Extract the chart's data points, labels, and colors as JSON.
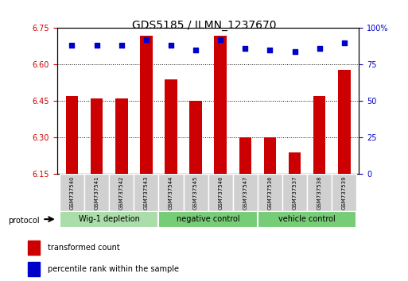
{
  "title": "GDS5185 / ILMN_1237670",
  "samples": [
    "GSM737540",
    "GSM737541",
    "GSM737542",
    "GSM737543",
    "GSM737544",
    "GSM737545",
    "GSM737546",
    "GSM737547",
    "GSM737536",
    "GSM737537",
    "GSM737538",
    "GSM737539"
  ],
  "bar_values": [
    6.47,
    6.46,
    6.46,
    6.72,
    6.54,
    6.45,
    6.72,
    6.3,
    6.3,
    6.24,
    6.47,
    6.58
  ],
  "dot_values": [
    88,
    88,
    88,
    92,
    88,
    85,
    92,
    86,
    85,
    84,
    86,
    90
  ],
  "ylim_left": [
    6.15,
    6.75
  ],
  "ylim_right": [
    0,
    100
  ],
  "yticks_left": [
    6.15,
    6.3,
    6.45,
    6.6,
    6.75
  ],
  "yticks_right": [
    0,
    25,
    50,
    75,
    100
  ],
  "ytick_labels_right": [
    "0",
    "25",
    "50",
    "75",
    "100%"
  ],
  "bar_color": "#cc0000",
  "dot_color": "#0000cc",
  "bar_bottom": 6.15,
  "groups": [
    {
      "label": "Wig-1 depletion",
      "indices": [
        0,
        1,
        2,
        3
      ],
      "color": "#aaddaa"
    },
    {
      "label": "negative control",
      "indices": [
        4,
        5,
        6,
        7
      ],
      "color": "#77cc77"
    },
    {
      "label": "vehicle control",
      "indices": [
        8,
        9,
        10,
        11
      ],
      "color": "#77cc77"
    }
  ],
  "xlabel_color": "#cc0000",
  "right_axis_color": "#0000cc",
  "legend_items": [
    {
      "label": "transformed count",
      "color": "#cc0000",
      "marker": "s"
    },
    {
      "label": "percentile rank within the sample",
      "color": "#0000cc",
      "marker": "s"
    }
  ],
  "protocol_label": "protocol",
  "bg_plot": "#ffffff",
  "tick_label_color_left": "#cc0000",
  "tick_label_color_right": "#0000cc"
}
